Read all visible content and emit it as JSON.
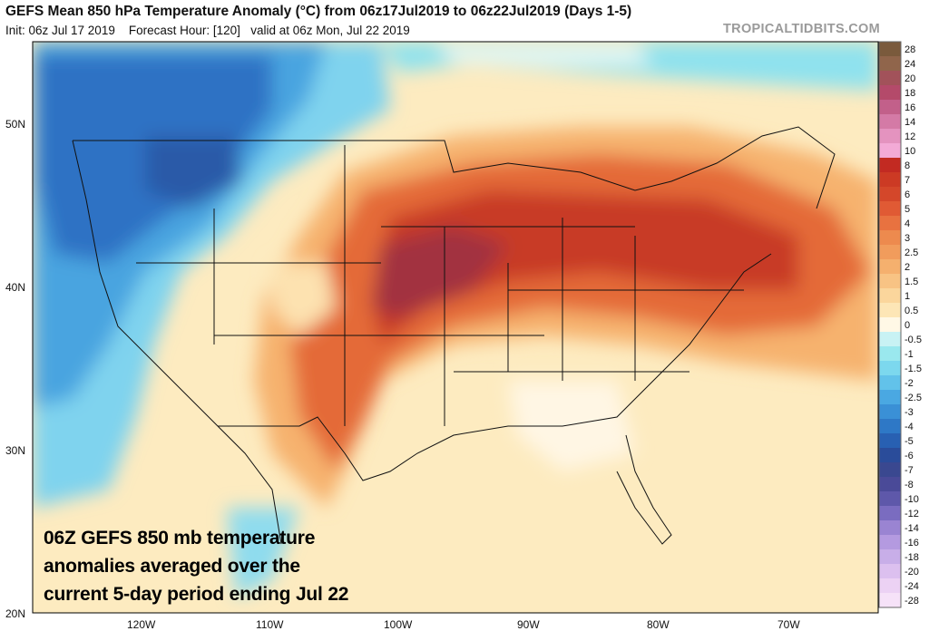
{
  "header": {
    "title": "GEFS Mean 850 hPa Temperature Anomaly (°C) from 06z17Jul2019 to 06z22Jul2019 (Days 1-5)",
    "init_label": "Init: 06z Jul 17 2019",
    "forecast_hour_label": "Forecast Hour: [120]",
    "valid_label": "valid at 06z Mon, Jul 22 2019",
    "brand": "TROPICALTIDBITS.COM"
  },
  "map": {
    "lat_labels": [
      "50N",
      "40N",
      "30N",
      "20N"
    ],
    "lon_labels": [
      "120W",
      "110W",
      "100W",
      "90W",
      "80W",
      "70W"
    ]
  },
  "colorbar": {
    "labels": [
      "28",
      "24",
      "20",
      "18",
      "16",
      "14",
      "12",
      "10",
      "8",
      "7",
      "6",
      "5",
      "4",
      "3",
      "2.5",
      "2",
      "1.5",
      "1",
      "0.5",
      "0",
      "-0.5",
      "-1",
      "-1.5",
      "-2",
      "-2.5",
      "-3",
      "-4",
      "-5",
      "-6",
      "-7",
      "-8",
      "-10",
      "-12",
      "-14",
      "-16",
      "-18",
      "-20",
      "-24",
      "-28"
    ],
    "colors": [
      "#7a5a3c",
      "#90654b",
      "#a2525a",
      "#b44a6a",
      "#c2608a",
      "#d47aa6",
      "#e493bf",
      "#f3aad6",
      "#c22a22",
      "#cc3a24",
      "#d4472a",
      "#e05a34",
      "#e87240",
      "#ed8a4e",
      "#f19c5c",
      "#f5b06e",
      "#f8c384",
      "#fbd69c",
      "#fde6b6",
      "#fff8e6",
      "#c8f2f4",
      "#9ae8ee",
      "#7cd8ee",
      "#62c2ea",
      "#4aa8e2",
      "#3a90d6",
      "#2e78c6",
      "#2860b2",
      "#2a4c9a",
      "#3a4890",
      "#4a4a98",
      "#5e58aa",
      "#7a6cc0",
      "#9a84d2",
      "#b49ae0",
      "#c8aee8",
      "#dcc0ef",
      "#ecd2f4",
      "#f6e2f8"
    ]
  },
  "caption": [
    "06Z GEFS 850 mb temperature",
    "anomalies averaged over the",
    "current 5-day period ending Jul 22"
  ]
}
